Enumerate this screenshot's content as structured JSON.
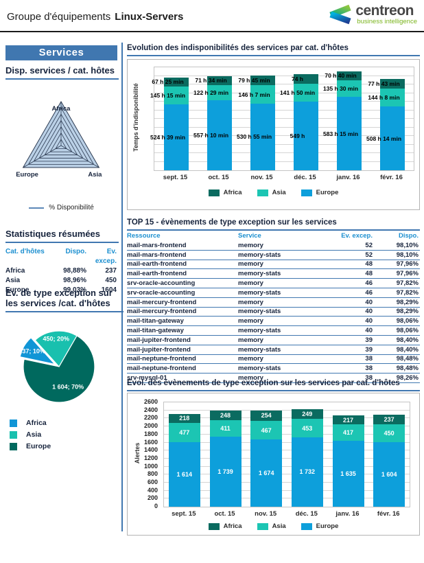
{
  "header": {
    "title_prefix": "Groupe d'équipements",
    "title_name": "Linux-Servers",
    "logo_text": "centreon",
    "logo_tagline": "business intelligence"
  },
  "colors": {
    "accent_blue": "#4077b0",
    "table_header_blue": "#1c8fd0",
    "europe_blue": "#0d9fdb",
    "asia_teal": "#1cc5b3",
    "africa_dark_teal": "#0b6b60",
    "pie_africa_blue": "#1095d6",
    "pie_asia_teal": "#19c0ae",
    "pie_europe_dark": "#00695e",
    "logo_green": "#7ab41d",
    "radar_fill": "#bad0e6"
  },
  "sidebar": {
    "panel_title": "Services",
    "radar_heading": "Disp. services / cat. hôtes",
    "radar_legend": "% Disponibilité",
    "stats_heading": "Statistiques résumées",
    "stats_columns": [
      "Cat. d'hôtes",
      "Dispo.",
      "Ev. excep."
    ],
    "stats_rows": [
      [
        "Africa",
        "98,88%",
        "237"
      ],
      [
        "Asia",
        "98,96%",
        "450"
      ],
      [
        "Europe",
        "99,03%",
        "1604"
      ]
    ],
    "pie_heading": "Ev. de type exception sur les services /cat. d'hôtes"
  },
  "main": {
    "chart1_title": "Evolution des indisponibilités des services par cat. d'hôtes",
    "table_title": "TOP 15 - évènements de type exception sur les services",
    "table_columns": [
      "Ressource",
      "Service",
      "Ev. excep.",
      "Dispo."
    ],
    "table_rows": [
      [
        "mail-mars-frontend",
        "memory",
        "52",
        "98,10%"
      ],
      [
        "mail-mars-frontend",
        "memory-stats",
        "52",
        "98,10%"
      ],
      [
        "mail-earth-frontend",
        "memory",
        "48",
        "97,96%"
      ],
      [
        "mail-earth-frontend",
        "memory-stats",
        "48",
        "97,96%"
      ],
      [
        "srv-oracle-accounting",
        "memory",
        "46",
        "97,82%"
      ],
      [
        "srv-oracle-accounting",
        "memory-stats",
        "46",
        "97,82%"
      ],
      [
        "mail-mercury-frontend",
        "memory",
        "40",
        "98,29%"
      ],
      [
        "mail-mercury-frontend",
        "memory-stats",
        "40",
        "98,29%"
      ],
      [
        "mail-titan-gateway",
        "memory",
        "40",
        "98,06%"
      ],
      [
        "mail-titan-gateway",
        "memory-stats",
        "40",
        "98,06%"
      ],
      [
        "mail-jupiter-frontend",
        "memory",
        "39",
        "98,40%"
      ],
      [
        "mail-jupiter-frontend",
        "memory-stats",
        "39",
        "98,40%"
      ],
      [
        "mail-neptune-frontend",
        "memory",
        "38",
        "98,48%"
      ],
      [
        "mail-neptune-frontend",
        "memory-stats",
        "38",
        "98,48%"
      ],
      [
        "srv-mysql-01",
        "memory",
        "38",
        "98,26%"
      ]
    ],
    "chart2_title": "Evol. des évènements de type exception sur les services par cat. d'hôtes"
  },
  "chart_data": [
    {
      "id": "disp-radar",
      "type": "radar",
      "title": "Disp. services / cat. hôtes",
      "axes": [
        "Africa",
        "Asia",
        "Europe"
      ],
      "values_pct": [
        98.88,
        98.96,
        99.03
      ],
      "legend": [
        "% Disponibilité"
      ],
      "grid_levels": 7
    },
    {
      "id": "indispo-bar",
      "type": "bar",
      "stacked": true,
      "title": "Evolution des indisponibilités des services par cat. d'hôtes",
      "ylabel": "Temps d'indisponibilité",
      "xlabel": "",
      "ylim_hours": [
        0,
        820
      ],
      "grid": true,
      "y_ticks_shown": false,
      "legend_position": "bottom",
      "categories": [
        "sept. 15",
        "oct. 15",
        "nov. 15",
        "déc. 15",
        "janv. 16",
        "févr. 16"
      ],
      "series": [
        {
          "name": "Europe",
          "color": "#0d9fdb",
          "hours": [
            524.65,
            557.17,
            530.92,
            549.0,
            583.25,
            508.23
          ],
          "labels": [
            "524 h 39 min",
            "557 h 10 min",
            "530 h 55 min",
            "549 h",
            "583 h 15 min",
            "508 h 14 min"
          ]
        },
        {
          "name": "Asia",
          "color": "#1cc5b3",
          "hours": [
            145.25,
            122.48,
            146.12,
            141.83,
            135.5,
            144.13
          ],
          "labels": [
            "145 h 15 min",
            "122 h 29 min",
            "146 h 7 min",
            "141 h 50 min",
            "135 h 30 min",
            "144 h 8 min"
          ]
        },
        {
          "name": "Africa",
          "color": "#0b6b60",
          "hours": [
            67.42,
            71.57,
            79.75,
            74.0,
            70.67,
            77.72
          ],
          "labels": [
            "67 h 25 min",
            "71 h 34 min",
            "79 h 45 min",
            "74 h",
            "70 h 40 min",
            "77 h 43 min"
          ]
        }
      ],
      "legend": [
        {
          "label": "Africa",
          "color": "#0b6b60"
        },
        {
          "label": "Asia",
          "color": "#1cc5b3"
        },
        {
          "label": "Europe",
          "color": "#0d9fdb"
        }
      ]
    },
    {
      "id": "exceptions-pie",
      "type": "pie",
      "title": "Ev. de type exception sur les services /cat. d'hôtes",
      "slices": [
        {
          "name": "Europe",
          "value": 1604,
          "pct": 70,
          "label": "1 604; 70%",
          "color": "#00695e",
          "exploded": false
        },
        {
          "name": "Africa",
          "value": 237,
          "pct": 10,
          "label": "237; 10%",
          "color": "#1095d6",
          "exploded": true
        },
        {
          "name": "Asia",
          "value": 450,
          "pct": 20,
          "label": "450; 20%",
          "color": "#19c0ae",
          "exploded": false
        }
      ],
      "legend": [
        {
          "label": "Africa",
          "color": "#1095d6"
        },
        {
          "label": "Asia",
          "color": "#19c0ae"
        },
        {
          "label": "Europe",
          "color": "#00695e"
        }
      ]
    },
    {
      "id": "alerts-bar",
      "type": "bar",
      "stacked": true,
      "title": "Evol. des évènements de type exception sur les services par cat. d'hôtes",
      "ylabel": "Alertes",
      "xlabel": "",
      "ylim": [
        0,
        2600
      ],
      "ytick_step": 200,
      "grid": true,
      "legend_position": "bottom",
      "categories": [
        "sept. 15",
        "oct. 15",
        "nov. 15",
        "déc. 15",
        "janv. 16",
        "févr. 16"
      ],
      "series": [
        {
          "name": "Europe",
          "color": "#0d9fdb",
          "values": [
            1614,
            1739,
            1674,
            1732,
            1635,
            1604
          ],
          "labels": [
            "1 614",
            "1 739",
            "1 674",
            "1 732",
            "1 635",
            "1 604"
          ]
        },
        {
          "name": "Asia",
          "color": "#1cc5b3",
          "values": [
            477,
            411,
            467,
            453,
            417,
            450
          ],
          "labels": [
            "477",
            "411",
            "467",
            "453",
            "417",
            "450"
          ]
        },
        {
          "name": "Africa",
          "color": "#0b6b60",
          "values": [
            218,
            248,
            254,
            249,
            217,
            237
          ],
          "labels": [
            "218",
            "248",
            "254",
            "249",
            "217",
            "237"
          ]
        }
      ],
      "legend": [
        {
          "label": "Africa",
          "color": "#0b6b60"
        },
        {
          "label": "Asia",
          "color": "#1cc5b3"
        },
        {
          "label": "Europe",
          "color": "#0d9fdb"
        }
      ]
    }
  ]
}
